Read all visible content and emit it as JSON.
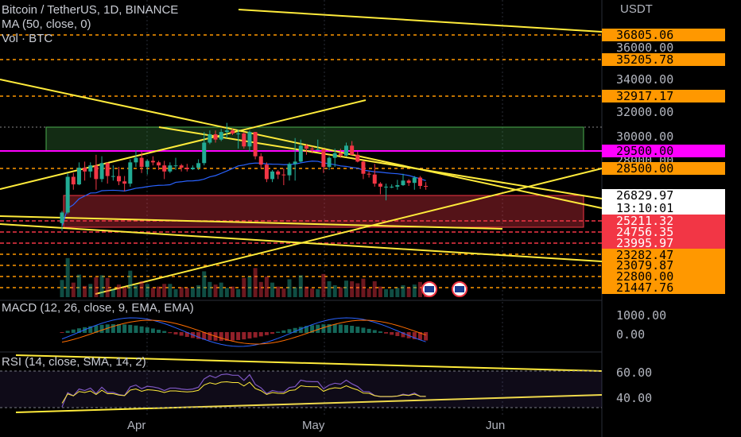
{
  "header": {
    "symbol_line": "Bitcoin / TetherUS, 1D, BINANCE",
    "ma_line": "MA (50, close, 0)",
    "vol_line": "Vol · BTC"
  },
  "price_axis": {
    "currency": "USDT",
    "plain_ticks": [
      "36000.00",
      "34000.00",
      "32000.00",
      "30000.00",
      "28000.00"
    ],
    "tags": [
      {
        "text": "36805.06",
        "bg": "#ff9800",
        "fg": "#000000"
      },
      {
        "text": "35205.78",
        "bg": "#ff9800",
        "fg": "#000000"
      },
      {
        "text": "32917.17",
        "bg": "#ff9800",
        "fg": "#000000"
      },
      {
        "text": "29500.00",
        "bg": "#ff00ff",
        "fg": "#000000"
      },
      {
        "text": "28500.00",
        "bg": "#ff9800",
        "fg": "#000000"
      },
      {
        "text": "26829.97",
        "bg": "#ffffff",
        "fg": "#000000"
      },
      {
        "text": "13:10:01",
        "bg": "#ffffff",
        "fg": "#000000"
      },
      {
        "text": "25211.32",
        "bg": "#f23645",
        "fg": "#ffffff"
      },
      {
        "text": "24756.35",
        "bg": "#f23645",
        "fg": "#ffffff"
      },
      {
        "text": "23995.97",
        "bg": "#f23645",
        "fg": "#ffffff"
      },
      {
        "text": "23282.47",
        "bg": "#ff9800",
        "fg": "#000000"
      },
      {
        "text": "23079.87",
        "bg": "#ff9800",
        "fg": "#000000"
      },
      {
        "text": "22800.00",
        "bg": "#ff9800",
        "fg": "#000000"
      },
      {
        "text": "21447.76",
        "bg": "#ff9800",
        "fg": "#000000"
      }
    ]
  },
  "macd": {
    "label": "MACD (12, 26, close, 9, EMA, EMA)",
    "ticks": [
      "1000.00",
      "0.00"
    ]
  },
  "rsi": {
    "label": "RSI (14, close, SMA, 14, 2)",
    "ticks": [
      "60.00",
      "40.00"
    ]
  },
  "time_axis": [
    "Apr",
    "May",
    "Jun"
  ],
  "colors": {
    "up": "#22ab94",
    "down": "#f23645",
    "trendline": "#ffeb3b",
    "level": "#ff9800",
    "magenta": "#ff00ff",
    "ma": "#2962ff",
    "rsi": "#7e57c2"
  },
  "chart_data": {
    "type": "candlestick",
    "x": [
      "Mar-16",
      "Mar-17",
      "Mar-18",
      "Mar-19",
      "Mar-20",
      "Mar-21",
      "Mar-22",
      "Mar-23",
      "Mar-24",
      "Mar-25",
      "Mar-26",
      "Mar-27",
      "Mar-28",
      "Mar-29",
      "Mar-30",
      "Mar-31",
      "Apr-01",
      "Apr-02",
      "Apr-03",
      "Apr-04",
      "Apr-05",
      "Apr-06",
      "Apr-07",
      "Apr-08",
      "Apr-09",
      "Apr-10",
      "Apr-11",
      "Apr-12",
      "Apr-13",
      "Apr-14",
      "Apr-15",
      "Apr-16",
      "Apr-17",
      "Apr-18",
      "Apr-19",
      "Apr-20",
      "Apr-21",
      "Apr-22",
      "Apr-23",
      "Apr-24",
      "Apr-25",
      "Apr-26",
      "Apr-27",
      "Apr-28",
      "Apr-29",
      "Apr-30",
      "May-01",
      "May-02",
      "May-03",
      "May-04",
      "May-05",
      "May-06",
      "May-07",
      "May-08",
      "May-09",
      "May-10",
      "May-11",
      "May-12",
      "May-13",
      "May-14",
      "May-15",
      "May-16",
      "May-17",
      "May-18",
      "May-19"
    ],
    "ohlc": [
      [
        24400,
        25200,
        23900,
        25100
      ],
      [
        25100,
        27700,
        25000,
        27450
      ],
      [
        27450,
        27700,
        26600,
        26950
      ],
      [
        26950,
        28400,
        26900,
        28050
      ],
      [
        28050,
        28450,
        27200,
        27800
      ],
      [
        27800,
        28400,
        27400,
        28200
      ],
      [
        28200,
        28900,
        26600,
        27300
      ],
      [
        27300,
        28800,
        27100,
        28350
      ],
      [
        28350,
        28400,
        27000,
        27500
      ],
      [
        27500,
        28200,
        27200,
        27500
      ],
      [
        27500,
        28100,
        26900,
        27150
      ],
      [
        27150,
        27500,
        26500,
        27000
      ],
      [
        27000,
        28600,
        26800,
        28400
      ],
      [
        28400,
        29200,
        28100,
        28700
      ],
      [
        28700,
        29100,
        27700,
        28100
      ],
      [
        28100,
        28600,
        27600,
        28500
      ],
      [
        28500,
        28800,
        28200,
        28400
      ],
      [
        28400,
        28500,
        27900,
        28200
      ],
      [
        28200,
        28500,
        27300,
        27800
      ],
      [
        27800,
        28400,
        27700,
        28200
      ],
      [
        28200,
        28700,
        27900,
        28200
      ],
      [
        28200,
        28300,
        27800,
        28050
      ],
      [
        28050,
        28300,
        27800,
        27950
      ],
      [
        27950,
        28200,
        27900,
        28050
      ],
      [
        28050,
        28600,
        27900,
        28350
      ],
      [
        28350,
        30400,
        28200,
        29700
      ],
      [
        29700,
        30500,
        29600,
        30250
      ],
      [
        30250,
        30500,
        29700,
        29900
      ],
      [
        29900,
        30600,
        29800,
        30400
      ],
      [
        30400,
        31000,
        30000,
        30500
      ],
      [
        30500,
        30600,
        30200,
        30300
      ],
      [
        30300,
        30550,
        29300,
        30300
      ],
      [
        30300,
        30400,
        29300,
        29450
      ],
      [
        29450,
        30500,
        29100,
        30400
      ],
      [
        30400,
        30400,
        28600,
        28800
      ],
      [
        28800,
        29000,
        28000,
        28250
      ],
      [
        28250,
        28400,
        27100,
        27300
      ],
      [
        27300,
        27900,
        27100,
        27800
      ],
      [
        27800,
        27900,
        27300,
        27600
      ],
      [
        27600,
        28000,
        26900,
        27550
      ],
      [
        27550,
        28400,
        27200,
        28300
      ],
      [
        28300,
        30000,
        27200,
        28450
      ],
      [
        28450,
        29900,
        28400,
        29500
      ],
      [
        29500,
        29600,
        28900,
        29300
      ],
      [
        29300,
        29450,
        29000,
        29250
      ],
      [
        29250,
        29900,
        29200,
        29250
      ],
      [
        29250,
        29300,
        27700,
        28100
      ],
      [
        28100,
        28800,
        27900,
        28700
      ],
      [
        28700,
        29300,
        28100,
        29000
      ],
      [
        29000,
        29300,
        28700,
        28850
      ],
      [
        28850,
        29700,
        28800,
        29500
      ],
      [
        29500,
        29800,
        28900,
        28900
      ],
      [
        28900,
        29100,
        28400,
        28450
      ],
      [
        28450,
        28500,
        27300,
        27650
      ],
      [
        27650,
        27800,
        27400,
        27600
      ],
      [
        27600,
        28300,
        26800,
        27000
      ],
      [
        27000,
        27100,
        26300,
        26800
      ],
      [
        26800,
        27000,
        25900,
        26800
      ],
      [
        26800,
        26950,
        26700,
        26800
      ],
      [
        26800,
        27250,
        26600,
        26900
      ],
      [
        26900,
        27650,
        26850,
        27200
      ],
      [
        27200,
        27300,
        26850,
        27050
      ],
      [
        27050,
        27500,
        26600,
        27400
      ],
      [
        27400,
        27500,
        26650,
        26850
      ],
      [
        26850,
        27100,
        26600,
        26830
      ]
    ]
  }
}
